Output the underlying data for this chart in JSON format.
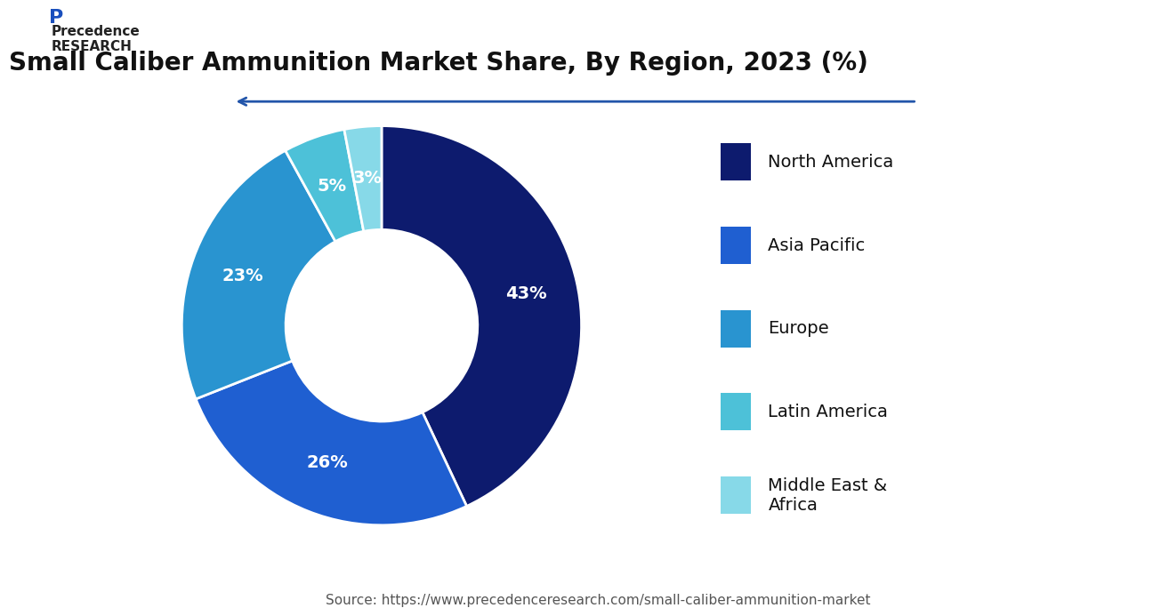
{
  "title": "Small Caliber Ammunition Market Share, By Region, 2023 (%)",
  "slices": [
    {
      "label": "North America",
      "value": 43,
      "color": "#0d1b6e"
    },
    {
      "label": "Asia Pacific",
      "value": 26,
      "color": "#1f5fd1"
    },
    {
      "label": "Europe",
      "value": 23,
      "color": "#2994d0"
    },
    {
      "label": "Latin America",
      "value": 5,
      "color": "#4dc1d8"
    },
    {
      "label": "Middle East &\nAfrica",
      "value": 3,
      "color": "#87d9e8"
    }
  ],
  "source_text": "Source: https://www.precedenceresearch.com/small-caliber-ammunition-market",
  "background_color": "#ffffff",
  "title_fontsize": 20,
  "label_fontsize": 14,
  "legend_fontsize": 14,
  "source_fontsize": 11
}
